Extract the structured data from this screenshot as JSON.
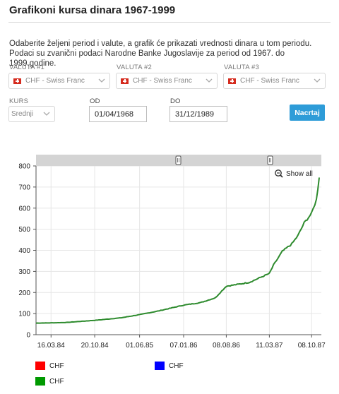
{
  "page": {
    "title": "Grafikoni kursa dinara 1967-1999",
    "intro": "Odaberite željeni period i valute, a grafik će prikazati vrednosti dinara u tom periodu. Podaci su zvanični podaci Narodne Banke Jugoslavije za period od 1967. do 1999.godine."
  },
  "form": {
    "valuta1_label": "VALUTA #1",
    "valuta2_label": "VALUTA #2",
    "valuta3_label": "VALUTA #3",
    "valuta1_value": "CHF - Swiss Franc",
    "valuta2_value": "CHF - Swiss Franc",
    "valuta3_value": "CHF - Swiss Franc",
    "kurs_label": "KURS",
    "kurs_value": "Srednji",
    "od_label": "OD",
    "od_value": "01/04/1968",
    "do_label": "DO",
    "do_value": "31/12/1989",
    "submit_label": "Nacrtaj"
  },
  "chart": {
    "show_all_label": "Show all",
    "colors": {
      "line": "#2e8b2e",
      "scroller": "#d4d4d4",
      "grid": "#e6e6e6"
    }
  },
  "chart_data": {
    "type": "line",
    "title": "",
    "xlabel": "",
    "ylabel": "",
    "ylim": [
      0,
      800
    ],
    "yticks": [
      0,
      100,
      200,
      300,
      400,
      500,
      600,
      700,
      800
    ],
    "xticks": [
      "16.03.84",
      "20.10.84",
      "01.06.85",
      "07.01.86",
      "08.08.86",
      "11.03.87",
      "08.10.87"
    ],
    "grid": true,
    "legend_position": "bottom",
    "legend": [
      {
        "name": "CHF",
        "color": "#ff0000"
      },
      {
        "name": "CHF",
        "color": "#0000ff"
      },
      {
        "name": "CHF",
        "color": "#009900"
      }
    ],
    "series": [
      {
        "name": "CHF",
        "color": "#2e8b2e",
        "x": [
          "01.01.84",
          "16.03.84",
          "01.06.84",
          "20.10.84",
          "01.03.85",
          "01.06.85",
          "01.09.85",
          "07.01.86",
          "01.04.86",
          "15.06.86",
          "01.07.86",
          "08.08.86",
          "01.10.86",
          "01.12.86",
          "11.03.87",
          "01.04.87",
          "15.05.87",
          "01.07.87",
          "01.08.87",
          "01.09.87",
          "08.10.87",
          "01.11.87",
          "15.11.87"
        ],
        "values": [
          55,
          56,
          58,
          68,
          80,
          95,
          112,
          140,
          152,
          175,
          192,
          230,
          238,
          248,
          290,
          330,
          395,
          430,
          470,
          530,
          575,
          640,
          745
        ]
      }
    ]
  }
}
